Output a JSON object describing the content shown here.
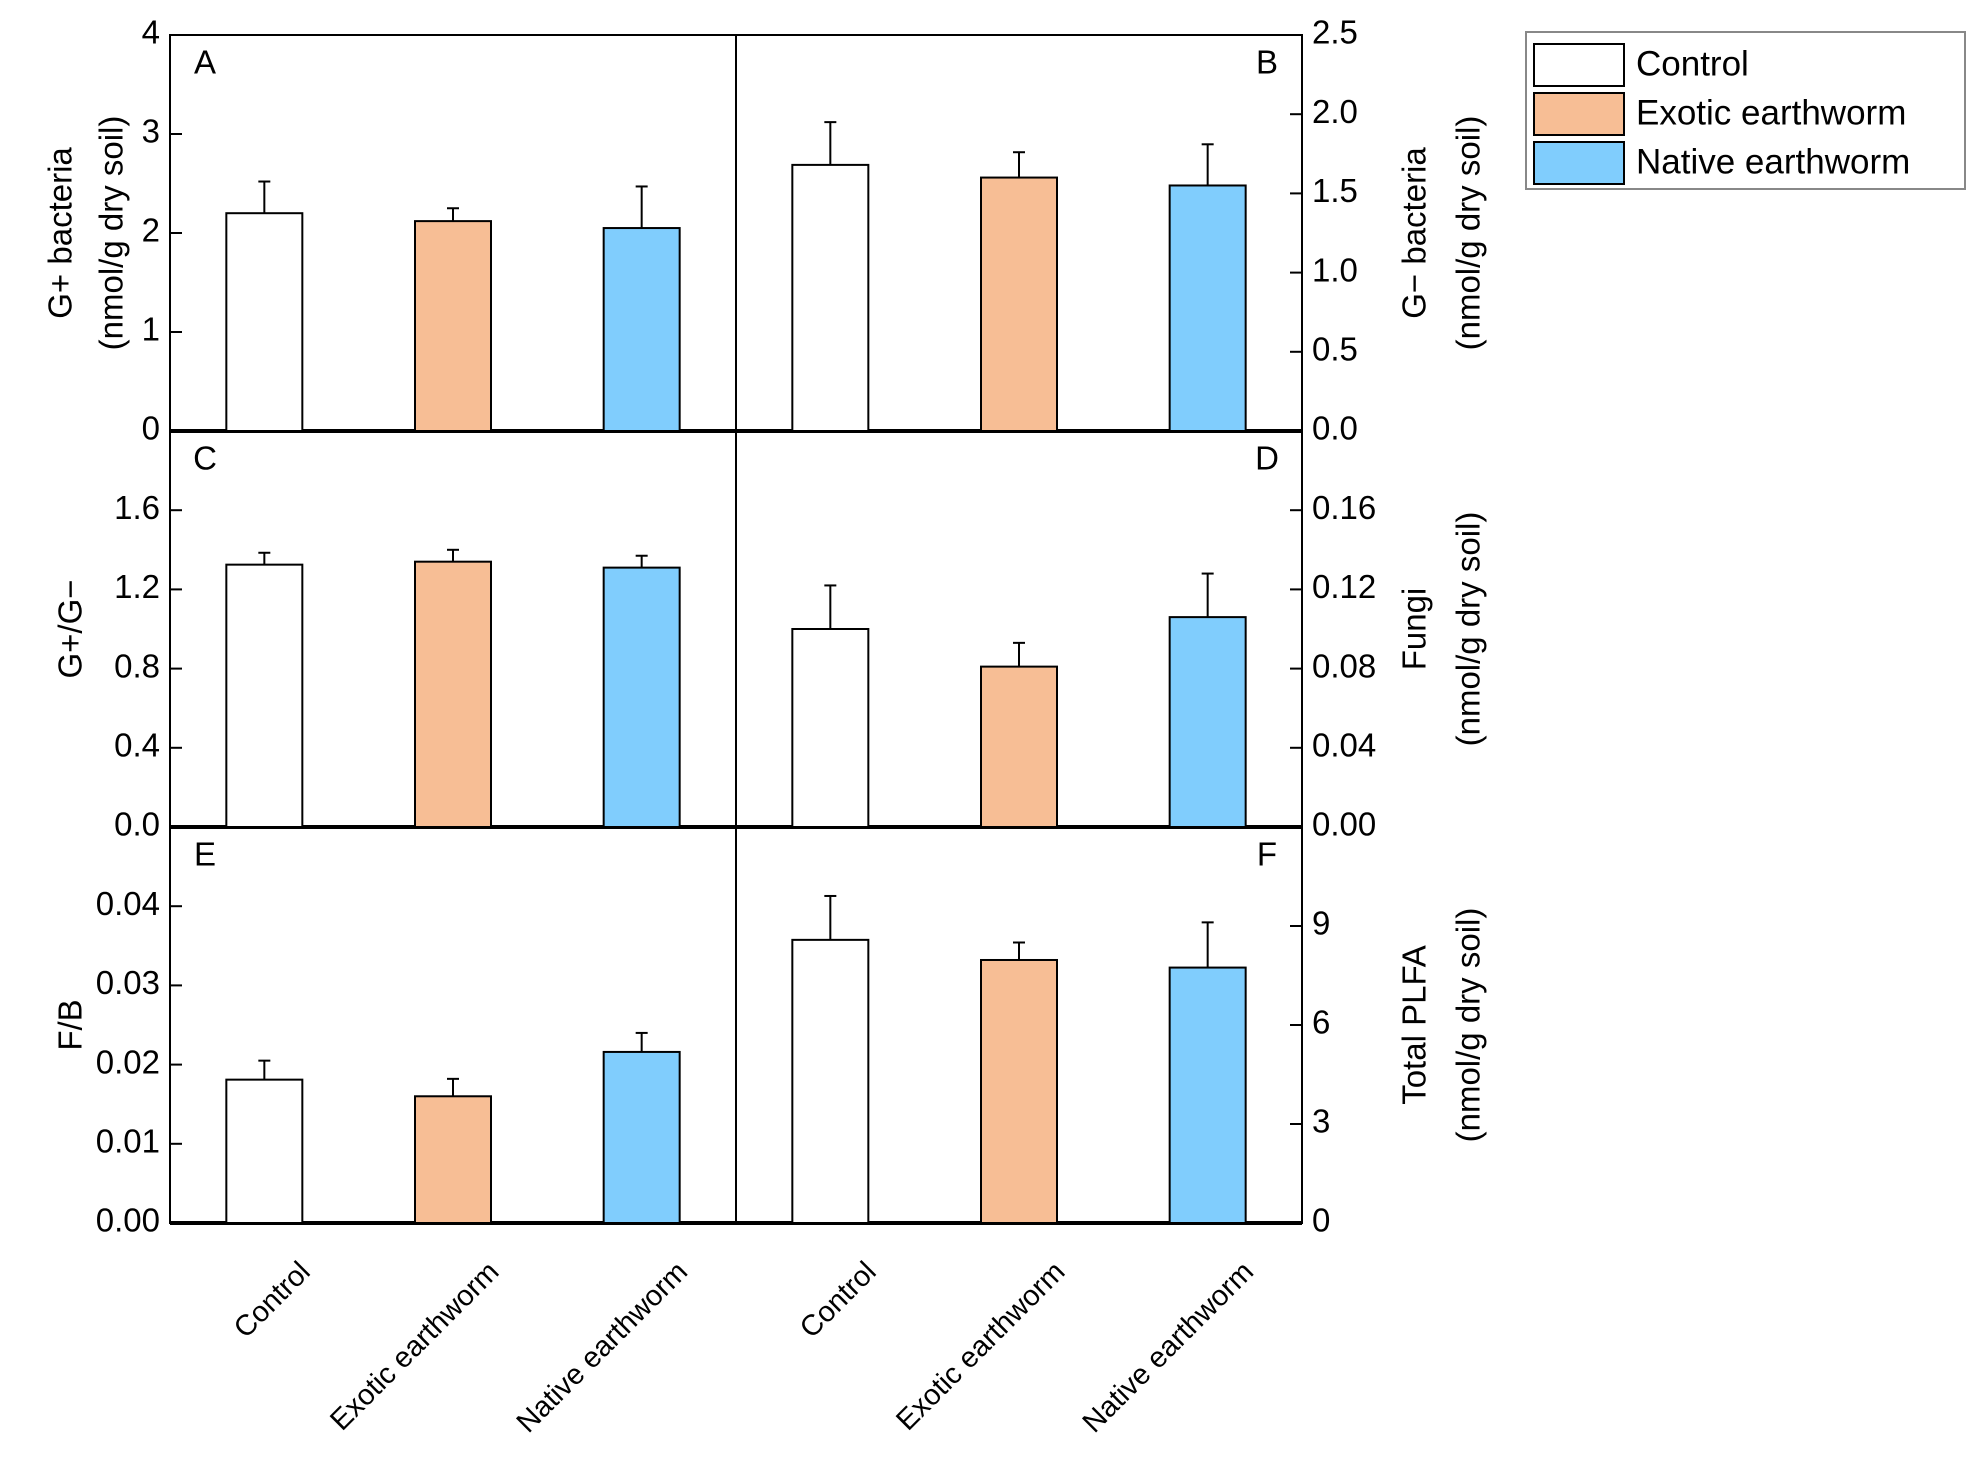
{
  "legend": [
    {
      "name": "Control",
      "color": "#ffffff"
    },
    {
      "name": "Exotic earthworm",
      "color": "#f7be95"
    },
    {
      "name": "Native earthworm",
      "color": "#80cdfd"
    }
  ],
  "chart_data": [
    {
      "type": "bar",
      "panel": "A",
      "axis_side": "left",
      "ylabel": [
        "G+ bacteria",
        "(nmol/g dry soil)"
      ],
      "values": [
        2.2,
        2.12,
        2.05
      ],
      "errors": [
        0.32,
        0.13,
        0.42
      ],
      "ylim": [
        0,
        4
      ],
      "yticks": [
        0,
        1,
        2,
        3,
        4
      ]
    },
    {
      "type": "bar",
      "panel": "B",
      "axis_side": "right",
      "ylabel": [
        "G− bacteria",
        "(nmol/g dry soil)"
      ],
      "values": [
        1.68,
        1.6,
        1.55
      ],
      "errors": [
        0.27,
        0.16,
        0.26
      ],
      "ylim": [
        0,
        2.5
      ],
      "yticks": [
        {
          "value": 0,
          "label": "0.0"
        },
        0.5,
        {
          "value": 1,
          "label": "1.0"
        },
        1.5,
        {
          "value": 2,
          "label": "2.0"
        },
        2.5
      ]
    },
    {
      "type": "bar",
      "panel": "C",
      "axis_side": "left",
      "ylabel": [
        "G+/G−"
      ],
      "values": [
        1.325,
        1.34,
        1.31
      ],
      "errors": [
        0.06,
        0.06,
        0.06
      ],
      "ylim": [
        0,
        2.0
      ],
      "yticks": [
        {
          "value": 0,
          "label": "0.0"
        },
        0.4,
        0.8,
        1.2,
        1.6
      ]
    },
    {
      "type": "bar",
      "panel": "D",
      "axis_side": "right",
      "ylabel": [
        "Fungi",
        "(nmol/g dry soil)"
      ],
      "values": [
        0.1,
        0.081,
        0.106
      ],
      "errors": [
        0.022,
        0.012,
        0.022
      ],
      "ylim": [
        0,
        0.2
      ],
      "yticks": [
        {
          "value": 0,
          "label": "0.00"
        },
        0.04,
        0.08,
        0.12,
        0.16
      ]
    },
    {
      "type": "bar",
      "panel": "E",
      "axis_side": "left",
      "ylabel": [
        "F/B"
      ],
      "categories": [
        "Control",
        "Exotic earthworm",
        "Native earthworm"
      ],
      "values": [
        0.0181,
        0.016,
        0.0216
      ],
      "errors": [
        0.0024,
        0.0022,
        0.0024
      ],
      "ylim": [
        0,
        0.05
      ],
      "yticks": [
        {
          "value": 0,
          "label": "0.00"
        },
        0.01,
        0.02,
        0.03,
        0.04
      ]
    },
    {
      "type": "bar",
      "panel": "F",
      "axis_side": "right",
      "ylabel": [
        "Total PLFA",
        "(nmol/g dry soil)"
      ],
      "categories": [
        "Control",
        "Exotic earthworm",
        "Native earthworm"
      ],
      "values": [
        8.58,
        7.97,
        7.74
      ],
      "errors": [
        1.33,
        0.53,
        1.37
      ],
      "ylim": [
        0,
        12
      ],
      "yticks": [
        0,
        3,
        6,
        9
      ]
    }
  ]
}
